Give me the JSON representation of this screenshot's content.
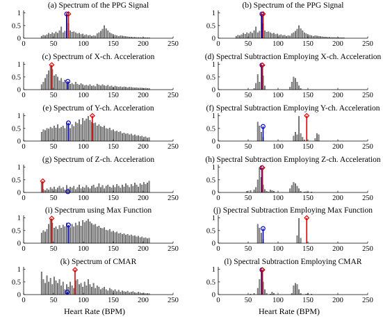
{
  "figure": {
    "x_axis_label": "Heart Rate (BPM)"
  },
  "chart_data": [
    {
      "type": "bar",
      "title": "(a) Spectrum of the PPG Signal",
      "xlim": [
        0,
        250
      ],
      "ylim": [
        0,
        1.1
      ],
      "xticks": [
        0,
        50,
        100,
        150,
        200,
        250
      ],
      "yticks": [
        0,
        0.5,
        1
      ],
      "x_start": 30,
      "x_step": 3,
      "values": [
        0.08,
        0.12,
        0.1,
        0.14,
        0.2,
        0.16,
        0.22,
        0.18,
        0.25,
        0.2,
        0.3,
        0.45,
        0.22,
        0.28,
        0.98,
        0.6,
        0.3,
        0.24,
        0.26,
        0.22,
        0.18,
        0.2,
        0.15,
        0.17,
        0.12,
        0.14,
        0.1,
        0.12,
        0.08,
        0.1,
        0.09,
        0.18,
        0.22,
        0.28,
        0.36,
        0.5,
        0.38,
        0.3,
        0.22,
        0.18,
        0.15,
        0.12,
        0.1,
        0.08,
        0.1,
        0.09,
        0.08,
        0.07,
        0.06,
        0.05,
        0.05,
        0.04,
        0.04,
        0.03,
        0.03,
        0.03,
        0.02,
        0.02,
        0.02,
        0.02,
        0.02
      ],
      "markers": [
        {
          "x": 72,
          "y": 0.96,
          "shape": "circle",
          "color": "#0000cc"
        },
        {
          "x": 75,
          "y": 0.96,
          "shape": "diamond",
          "color": "#dd0000"
        }
      ]
    },
    {
      "type": "bar",
      "title": "(b) Spectrum of the PPG Signal",
      "xlim": [
        0,
        250
      ],
      "ylim": [
        0,
        1.1
      ],
      "xticks": [
        0,
        50,
        100,
        150,
        200,
        250
      ],
      "yticks": [
        0,
        0.5,
        1
      ],
      "x_start": 30,
      "x_step": 3,
      "values": [
        0.08,
        0.12,
        0.1,
        0.14,
        0.2,
        0.16,
        0.22,
        0.18,
        0.25,
        0.2,
        0.3,
        0.45,
        0.22,
        0.28,
        0.98,
        0.6,
        0.3,
        0.24,
        0.26,
        0.22,
        0.18,
        0.2,
        0.15,
        0.17,
        0.12,
        0.14,
        0.1,
        0.12,
        0.08,
        0.1,
        0.09,
        0.18,
        0.22,
        0.28,
        0.36,
        0.5,
        0.38,
        0.3,
        0.22,
        0.18,
        0.15,
        0.12,
        0.1,
        0.08,
        0.1,
        0.09,
        0.08,
        0.07,
        0.06,
        0.05,
        0.05,
        0.04,
        0.04,
        0.03,
        0.03,
        0.03,
        0.02,
        0.02,
        0.02,
        0.02,
        0.02
      ],
      "markers": [
        {
          "x": 73,
          "y": 0.96,
          "shape": "circle",
          "color": "#0000cc"
        },
        {
          "x": 75,
          "y": 0.96,
          "shape": "diamond",
          "color": "#dd0000"
        }
      ]
    },
    {
      "type": "bar",
      "title": "(c) Spectrum of X-ch. Acceleration",
      "xlim": [
        0,
        250
      ],
      "ylim": [
        0,
        1.1
      ],
      "xticks": [
        0,
        50,
        100,
        150,
        200,
        250
      ],
      "yticks": [
        0,
        0.5,
        1
      ],
      "x_start": 30,
      "x_step": 3,
      "values": [
        0.2,
        0.3,
        0.45,
        0.6,
        0.75,
        0.95,
        0.8,
        0.55,
        0.6,
        0.5,
        0.35,
        0.45,
        0.3,
        0.38,
        0.28,
        0.3,
        0.22,
        0.25,
        0.2,
        0.3,
        0.22,
        0.18,
        0.24,
        0.2,
        0.16,
        0.18,
        0.15,
        0.2,
        0.14,
        0.16,
        0.12,
        0.22,
        0.18,
        0.15,
        0.2,
        0.16,
        0.14,
        0.18,
        0.12,
        0.15,
        0.1,
        0.14,
        0.12,
        0.1,
        0.12,
        0.09,
        0.11,
        0.1,
        0.08,
        0.1,
        0.09,
        0.08,
        0.07,
        0.08,
        0.06,
        0.07,
        0.06,
        0.05,
        0.06,
        0.05,
        0.05
      ],
      "markers": [
        {
          "x": 47,
          "y": 0.98,
          "shape": "diamond",
          "color": "#dd0000"
        },
        {
          "x": 74,
          "y": 0.33,
          "shape": "circle",
          "color": "#0000cc"
        }
      ]
    },
    {
      "type": "bar",
      "title": "(d) Spectral Subtraction Employing X-ch. Acceleration",
      "xlim": [
        0,
        250
      ],
      "ylim": [
        0,
        1.1
      ],
      "xticks": [
        0,
        50,
        100,
        150,
        200,
        250
      ],
      "yticks": [
        0,
        0.5,
        1
      ],
      "x_start": 60,
      "x_step": 3,
      "values": [
        0.05,
        0.25,
        0.6,
        0.3,
        0.98,
        0.55,
        0.15,
        0,
        0,
        0,
        0,
        0,
        0,
        0,
        0,
        0,
        0,
        0,
        0,
        0,
        0.1,
        0.3,
        0.5,
        0.45,
        0.3,
        0.15,
        0.05
      ],
      "markers": [
        {
          "x": 73,
          "y": 0.97,
          "shape": "circle",
          "color": "#0000cc"
        },
        {
          "x": 74,
          "y": 0.97,
          "shape": "diamond",
          "color": "#dd0000"
        }
      ]
    },
    {
      "type": "bar",
      "title": "(e) Spectrum of Y-ch. Acceleration",
      "xlim": [
        0,
        250
      ],
      "ylim": [
        0,
        1.1
      ],
      "xticks": [
        0,
        50,
        100,
        150,
        200,
        250
      ],
      "yticks": [
        0,
        0.5,
        1
      ],
      "x_start": 30,
      "x_step": 3,
      "values": [
        0.35,
        0.45,
        0.42,
        0.5,
        0.48,
        0.55,
        0.5,
        0.6,
        0.52,
        0.65,
        0.5,
        0.55,
        0.6,
        0.5,
        0.72,
        0.62,
        0.5,
        0.65,
        0.58,
        0.75,
        0.7,
        0.85,
        0.65,
        0.9,
        0.8,
        0.88,
        0.98,
        0.82,
        0.75,
        0.7,
        0.72,
        0.6,
        0.65,
        0.58,
        0.55,
        0.6,
        0.5,
        0.48,
        0.52,
        0.42,
        0.45,
        0.38,
        0.4,
        0.35,
        0.38,
        0.3,
        0.32,
        0.28,
        0.3,
        0.25,
        0.28,
        0.22,
        0.25,
        0.2,
        0.22,
        0.18,
        0.2,
        0.15,
        0.17,
        0.12,
        0.14
      ],
      "markers": [
        {
          "x": 75,
          "y": 0.72,
          "shape": "circle",
          "color": "#0000cc"
        },
        {
          "x": 115,
          "y": 1.0,
          "shape": "diamond",
          "color": "#dd0000"
        }
      ]
    },
    {
      "type": "bar",
      "title": "(f) Spectral Subtraction Employing Y-ch. Acceleration",
      "xlim": [
        0,
        250
      ],
      "ylim": [
        0,
        1.1
      ],
      "xticks": [
        0,
        50,
        100,
        150,
        200,
        250
      ],
      "yticks": [
        0,
        0.5,
        1
      ],
      "x_start": 66,
      "x_step": 3,
      "values": [
        0.75,
        0.6,
        0.35,
        0.15,
        0,
        0,
        0,
        0,
        0,
        0,
        0,
        0,
        0,
        0,
        0,
        0,
        0,
        0,
        0,
        0,
        0.2,
        0.35,
        0.25,
        0.98,
        0.3,
        0.15,
        0.05,
        0,
        0,
        0,
        0,
        0,
        0.1,
        0.3,
        0.25
      ],
      "markers": [
        {
          "x": 75,
          "y": 0.58,
          "shape": "circle",
          "color": "#0000cc"
        },
        {
          "x": 148,
          "y": 1.0,
          "shape": "diamond",
          "color": "#dd0000"
        }
      ]
    },
    {
      "type": "bar",
      "title": "(g) Spectrum of Z-ch. Acceleration",
      "xlim": [
        0,
        250
      ],
      "ylim": [
        0,
        1.1
      ],
      "xticks": [
        0,
        50,
        100,
        150,
        200,
        250
      ],
      "yticks": [
        0,
        0.5,
        1
      ],
      "x_start": 30,
      "x_step": 3,
      "values": [
        0.4,
        0.12,
        0.08,
        0.15,
        0.1,
        0.2,
        0.14,
        0.22,
        0.12,
        0.18,
        0.25,
        0.15,
        0.2,
        0.1,
        0.28,
        0.15,
        0.22,
        0.18,
        0.25,
        0.12,
        0.2,
        0.3,
        0.15,
        0.22,
        0.18,
        0.28,
        0.2,
        0.15,
        0.25,
        0.3,
        0.18,
        0.22,
        0.35,
        0.2,
        0.28,
        0.15,
        0.25,
        0.3,
        0.22,
        0.18,
        0.28,
        0.2,
        0.32,
        0.25,
        0.18,
        0.3,
        0.22,
        0.35,
        0.28,
        0.2,
        0.32,
        0.25,
        0.38,
        0.3,
        0.22,
        0.35,
        0.3,
        0.4,
        0.32,
        0.38,
        0.45
      ],
      "markers": [
        {
          "x": 32,
          "y": 0.45,
          "shape": "diamond",
          "color": "#dd0000"
        },
        {
          "x": 74,
          "y": 0.03,
          "shape": "circle",
          "color": "#0000cc"
        }
      ]
    },
    {
      "type": "bar",
      "title": "(h) Spectral Subtraction Employing Z-ch. Acceleration",
      "xlim": [
        0,
        250
      ],
      "ylim": [
        0,
        1.1
      ],
      "xticks": [
        0,
        50,
        100,
        150,
        200,
        250
      ],
      "yticks": [
        0,
        0.5,
        1
      ],
      "x_start": 48,
      "x_step": 3,
      "values": [
        0.05,
        0,
        0.08,
        0,
        0.1,
        0.2,
        0.5,
        0.98,
        0.6,
        0.3,
        0.12,
        0.05,
        0.02,
        0.1,
        0.08,
        0.05,
        0,
        0,
        0,
        0,
        0,
        0,
        0,
        0,
        0.15,
        0.28,
        0.4,
        0.35,
        0.25,
        0.15,
        0.05,
        0,
        0.02,
        0.03,
        0.02,
        0,
        0.02
      ],
      "markers": [
        {
          "x": 73,
          "y": 0.98,
          "shape": "circle",
          "color": "#0000cc"
        },
        {
          "x": 74,
          "y": 0.98,
          "shape": "diamond",
          "color": "#dd0000"
        }
      ]
    },
    {
      "type": "bar",
      "title": "(i) Spectrum using Max Function",
      "xlim": [
        0,
        250
      ],
      "ylim": [
        0,
        1.1
      ],
      "xticks": [
        0,
        50,
        100,
        150,
        200,
        250
      ],
      "yticks": [
        0,
        0.5,
        1
      ],
      "x_start": 30,
      "x_step": 3,
      "values": [
        0.4,
        0.5,
        0.45,
        0.55,
        0.75,
        0.95,
        0.8,
        0.6,
        0.65,
        0.55,
        0.7,
        0.6,
        0.72,
        0.65,
        0.8,
        0.7,
        0.62,
        0.75,
        0.65,
        0.8,
        0.7,
        0.85,
        0.68,
        0.9,
        0.82,
        0.88,
        0.95,
        0.85,
        0.78,
        0.72,
        0.75,
        0.65,
        0.68,
        0.6,
        0.58,
        0.62,
        0.52,
        0.5,
        0.55,
        0.45,
        0.48,
        0.42,
        0.45,
        0.38,
        0.4,
        0.35,
        0.38,
        0.32,
        0.35,
        0.3,
        0.33,
        0.28,
        0.3,
        0.25,
        0.28,
        0.22,
        0.25,
        0.2,
        0.22,
        0.18,
        0.2
      ],
      "markers": [
        {
          "x": 47,
          "y": 0.98,
          "shape": "diamond",
          "color": "#dd0000"
        },
        {
          "x": 75,
          "y": 0.72,
          "shape": "circle",
          "color": "#0000cc"
        }
      ]
    },
    {
      "type": "bar",
      "title": "(j) Spectral Subtraction Employing Max Function",
      "xlim": [
        0,
        250
      ],
      "ylim": [
        0,
        1.1
      ],
      "xticks": [
        0,
        50,
        100,
        150,
        200,
        250
      ],
      "yticks": [
        0,
        0.5,
        1
      ],
      "x_start": 66,
      "x_step": 3,
      "values": [
        0.75,
        0.6,
        0.4,
        0.15,
        0,
        0,
        0,
        0,
        0,
        0,
        0,
        0,
        0,
        0,
        0,
        0,
        0,
        0,
        0,
        0,
        0,
        0,
        0.3,
        0.98,
        0.2
      ],
      "markers": [
        {
          "x": 75,
          "y": 0.58,
          "shape": "circle",
          "color": "#0000cc"
        },
        {
          "x": 148,
          "y": 1.0,
          "shape": "diamond",
          "color": "#dd0000"
        }
      ]
    },
    {
      "type": "bar",
      "title": "(k) Spectrum of CMAR",
      "xlim": [
        0,
        250
      ],
      "ylim": [
        0,
        1.1
      ],
      "xticks": [
        0,
        50,
        100,
        150,
        200,
        250
      ],
      "yticks": [
        0,
        0.5,
        1
      ],
      "x_start": 30,
      "x_step": 3,
      "values": [
        0.9,
        0.6,
        0.45,
        0.75,
        0.5,
        0.65,
        0.4,
        0.7,
        0.55,
        0.45,
        0.6,
        0.35,
        0.5,
        0.2,
        0.4,
        0.3,
        0.5,
        0.35,
        0.25,
        0.55,
        0.6,
        0.4,
        0.45,
        0.3,
        0.5,
        0.35,
        0.6,
        0.4,
        0.3,
        0.45,
        0.25,
        0.35,
        0.3,
        0.2,
        0.25,
        0.3,
        0.2,
        0.15,
        0.25,
        0.2,
        0.15,
        0.2,
        0.12,
        0.18,
        0.1,
        0.15,
        0.12,
        0.1,
        0.14,
        0.08,
        0.1,
        0.12,
        0.08,
        0.06,
        0.1,
        0.07,
        0.05,
        0.06,
        0.04,
        0.05,
        0.04
      ],
      "markers": [
        {
          "x": 73,
          "y": 0.1,
          "shape": "circle",
          "color": "#0000cc"
        },
        {
          "x": 86,
          "y": 0.98,
          "shape": "diamond",
          "color": "#dd0000"
        }
      ]
    },
    {
      "type": "bar",
      "title": "(l) Spectral Subtraction Employing CMAR",
      "xlim": [
        0,
        250
      ],
      "ylim": [
        0,
        1.1
      ],
      "xticks": [
        0,
        50,
        100,
        150,
        200,
        250
      ],
      "yticks": [
        0,
        0.5,
        1
      ],
      "x_start": 54,
      "x_step": 3,
      "values": [
        0.02,
        0,
        0.05,
        0,
        0.25,
        0.6,
        0.98,
        0.5,
        0.2,
        0.05,
        0,
        0.02,
        0.1,
        0.05,
        0,
        0,
        0,
        0,
        0,
        0,
        0,
        0,
        0,
        0.05,
        0.35,
        0.45,
        0.4,
        0.2,
        0.05,
        0,
        0,
        0.02,
        0.04,
        0,
        0.02
      ],
      "markers": [
        {
          "x": 73,
          "y": 0.98,
          "shape": "circle",
          "color": "#0000cc"
        },
        {
          "x": 74,
          "y": 0.98,
          "shape": "diamond",
          "color": "#dd0000"
        }
      ]
    }
  ]
}
